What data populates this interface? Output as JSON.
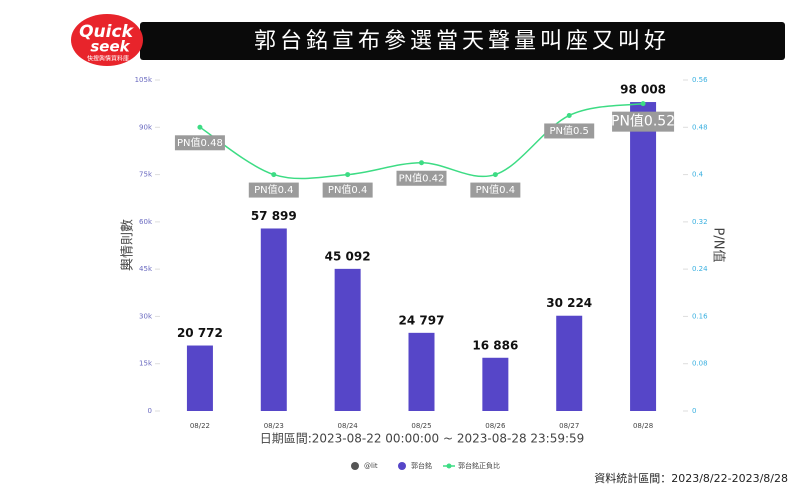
{
  "header": {
    "logo_top": "Quick",
    "logo_bottom": "seek",
    "logo_sub": "快搜輿情資料庫"
  },
  "chart_data": {
    "type": "bar",
    "title": "郭台銘宣布參選當天聲量叫座又叫好",
    "categories": [
      "08/22",
      "08/23",
      "08/24",
      "08/25",
      "08/26",
      "08/27",
      "08/28"
    ],
    "series": [
      {
        "name": "@lit",
        "type": "legend",
        "color": "#555555",
        "values": [
          null,
          null,
          null,
          null,
          null,
          null,
          null
        ]
      },
      {
        "name": "郭台銘",
        "type": "bar",
        "color": "#5646c8",
        "values": [
          20772,
          57899,
          45092,
          24797,
          16886,
          30224,
          98008
        ],
        "value_labels": [
          "20 772",
          "57 899",
          "45 092",
          "24 797",
          "16 886",
          "30 224",
          "98 008"
        ]
      },
      {
        "name": "郭台銘正負比",
        "type": "line",
        "axis": "y2",
        "color": "#3ddc84",
        "values": [
          0.48,
          0.4,
          0.4,
          0.42,
          0.4,
          0.5,
          0.52
        ],
        "value_labels": [
          "PN值0.48",
          "PN值0.4",
          "PN值0.4",
          "PN值0.42",
          "PN值0.4",
          "PN值0.5",
          "PN值0.52"
        ]
      }
    ],
    "ylim": [
      0,
      105000
    ],
    "yticks": [
      0,
      {
        "value": 15000,
        "label": "15k"
      },
      {
        "value": 30000,
        "label": "30k"
      },
      {
        "value": 45000,
        "label": "45k"
      },
      {
        "value": 60000,
        "label": "60k"
      },
      {
        "value": 75000,
        "label": "75k"
      },
      {
        "value": 90000,
        "label": "90k"
      },
      {
        "value": 105000,
        "label": "105k"
      }
    ],
    "y2lim": [
      0,
      0.56
    ],
    "y2ticks": [
      0,
      0.08,
      0.16,
      0.24,
      0.32,
      0.4,
      0.48,
      0.56
    ],
    "ylabel": "輿情則數",
    "y2label": "P/N值",
    "xlabel": "日期區間:2023-08-22 00:00:00 ~ 2023-08-28 23:59:59",
    "note": "資料統計區間：2023/8/22-2023/8/28"
  }
}
